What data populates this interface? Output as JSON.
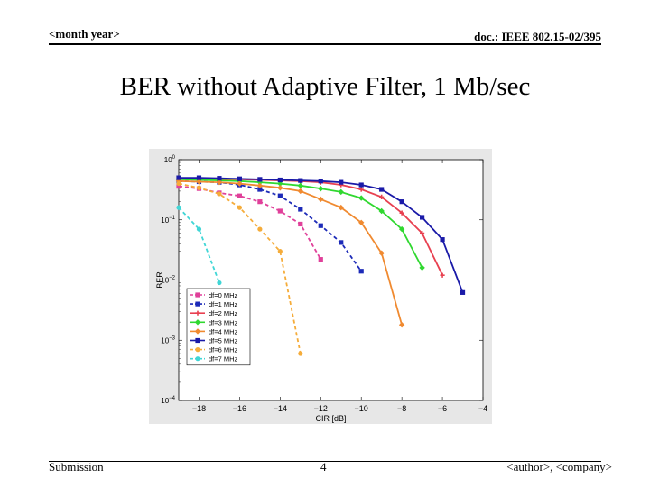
{
  "header": {
    "left": "<month year>",
    "right": "doc.: IEEE 802.15-02/395"
  },
  "slide": {
    "title": "BER without Adaptive Filter, 1 Mb/sec"
  },
  "footer": {
    "left": "Submission",
    "page": "4",
    "right": "<author>, <company>"
  },
  "chart_data": {
    "type": "line",
    "title": "",
    "xlabel": "CIR [dB]",
    "ylabel": "BER",
    "xlim": [
      -19,
      -4
    ],
    "ylim": [
      0.0001,
      1
    ],
    "yscale": "log",
    "xticks": [
      -18,
      -16,
      -14,
      -12,
      -10,
      -8,
      -6,
      -4
    ],
    "yticks": [
      1,
      0.1,
      0.01,
      0.001,
      0.0001
    ],
    "yticklabels": [
      "10^0",
      "10^-1",
      "10^-2",
      "10^-3",
      "10^-4"
    ],
    "grid": false,
    "legend_position": "bottom-left",
    "series": [
      {
        "name": "df=0 MHz",
        "color": "#e0409a",
        "style": "dashed",
        "marker": "square",
        "x": [
          -19,
          -18,
          -17,
          -16,
          -15,
          -14,
          -13,
          -12
        ],
        "y": [
          0.36,
          0.33,
          0.28,
          0.25,
          0.2,
          0.14,
          0.085,
          0.022
        ]
      },
      {
        "name": "df=1 MHz",
        "color": "#1c2ab8",
        "style": "dashed",
        "marker": "square",
        "x": [
          -19,
          -18,
          -17,
          -16,
          -15,
          -14,
          -13,
          -12,
          -11,
          -10
        ],
        "y": [
          0.44,
          0.43,
          0.42,
          0.38,
          0.32,
          0.25,
          0.15,
          0.08,
          0.042,
          0.014
        ]
      },
      {
        "name": "df=2 MHz",
        "color": "#e84050",
        "style": "solid",
        "marker": "plus",
        "x": [
          -19,
          -18,
          -17,
          -16,
          -15,
          -14,
          -13,
          -12,
          -11,
          -10,
          -9,
          -8,
          -7,
          -6
        ],
        "y": [
          0.48,
          0.48,
          0.47,
          0.47,
          0.46,
          0.45,
          0.44,
          0.42,
          0.38,
          0.32,
          0.24,
          0.13,
          0.06,
          0.012
        ]
      },
      {
        "name": "df=3 MHz",
        "color": "#30d830",
        "style": "solid",
        "marker": "diamond",
        "x": [
          -19,
          -18,
          -17,
          -16,
          -15,
          -14,
          -13,
          -12,
          -11,
          -10,
          -9,
          -8,
          -7
        ],
        "y": [
          0.47,
          0.46,
          0.45,
          0.44,
          0.42,
          0.4,
          0.37,
          0.33,
          0.29,
          0.23,
          0.14,
          0.07,
          0.016
        ]
      },
      {
        "name": "df=4 MHz",
        "color": "#f08a30",
        "style": "solid",
        "marker": "diamond",
        "x": [
          -19,
          -18,
          -17,
          -16,
          -15,
          -14,
          -13,
          -12,
          -11,
          -10,
          -9,
          -8
        ],
        "y": [
          0.44,
          0.43,
          0.42,
          0.4,
          0.37,
          0.34,
          0.3,
          0.22,
          0.16,
          0.09,
          0.028,
          0.0018
        ]
      },
      {
        "name": "df=5 MHz",
        "color": "#1a1aa8",
        "style": "solid",
        "marker": "square",
        "x": [
          -19,
          -18,
          -17,
          -16,
          -15,
          -14,
          -13,
          -12,
          -11,
          -10,
          -9,
          -8,
          -7,
          -6,
          -5
        ],
        "y": [
          0.5,
          0.5,
          0.49,
          0.48,
          0.47,
          0.46,
          0.45,
          0.44,
          0.42,
          0.38,
          0.32,
          0.2,
          0.11,
          0.047,
          0.0062
        ]
      },
      {
        "name": "df=6 MHz",
        "color": "#f5ac3a",
        "style": "dashed",
        "marker": "circle",
        "x": [
          -19,
          -18,
          -17,
          -16,
          -15,
          -14,
          -13
        ],
        "y": [
          0.4,
          0.34,
          0.27,
          0.16,
          0.07,
          0.03,
          0.0006
        ]
      },
      {
        "name": "df=7 MHz",
        "color": "#40d6d6",
        "style": "dashed",
        "marker": "circle",
        "x": [
          -19,
          -18,
          -17
        ],
        "y": [
          0.16,
          0.07,
          0.009
        ]
      }
    ]
  }
}
